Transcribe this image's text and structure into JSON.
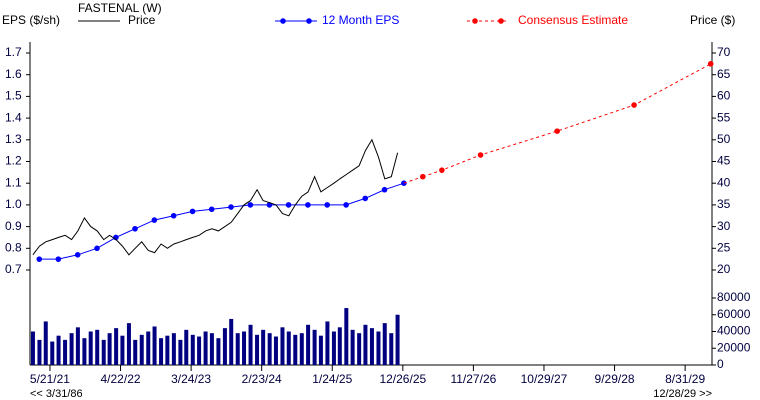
{
  "chart_data": [
    {
      "type": "line",
      "title": "FASTENAL (W)",
      "y_label": "EPS ($/sh)",
      "y2_label": "Price ($)",
      "xlim": [
        "2021-02-15",
        "2030-01-06"
      ],
      "xticks": [
        {
          "value": "2021-05-21",
          "label": "5/21/21"
        },
        {
          "value": "2022-04-22",
          "label": "4/22/22"
        },
        {
          "value": "2023-03-24",
          "label": "3/24/23"
        },
        {
          "value": "2024-02-23",
          "label": "2/23/24"
        },
        {
          "value": "2025-01-24",
          "label": "1/24/25"
        },
        {
          "value": "2025-12-26",
          "label": "12/26/25"
        },
        {
          "value": "2026-11-27",
          "label": "11/27/26"
        },
        {
          "value": "2027-10-29",
          "label": "10/29/27"
        },
        {
          "value": "2028-09-29",
          "label": "9/29/28"
        },
        {
          "value": "2029-08-31",
          "label": "8/31/29"
        }
      ],
      "ylim": [
        0.7,
        1.7
      ],
      "yticks": [
        0.7,
        0.8,
        0.9,
        {
          "value": 1,
          "label": "1.0"
        },
        1.1,
        1.2,
        1.3,
        1.4,
        1.5,
        1.6,
        1.7
      ],
      "y2lim": [
        20,
        70
      ],
      "y2ticks": [
        20,
        25,
        30,
        35,
        40,
        45,
        50,
        55,
        60,
        65,
        70
      ],
      "range_start_link": "<< 3/31/86",
      "range_end_link": "12/28/29 >>",
      "series": [
        {
          "name": "12 Month EPS",
          "color": "#0000ff",
          "style": "solid",
          "x": [
            "2021-03-31",
            "2021-06-30",
            "2021-09-30",
            "2021-12-31",
            "2022-03-31",
            "2022-06-30",
            "2022-09-30",
            "2022-12-31",
            "2023-03-31",
            "2023-06-30",
            "2023-09-30",
            "2023-12-31",
            "2024-03-31",
            "2024-06-30",
            "2024-09-30",
            "2024-12-31",
            "2025-03-31",
            "2025-06-30",
            "2025-09-30",
            "2025-12-31"
          ],
          "values": [
            0.75,
            0.75,
            0.77,
            0.8,
            0.85,
            0.89,
            0.93,
            0.95,
            0.97,
            0.98,
            0.99,
            1.0,
            1.0,
            1.0,
            1.0,
            1.0,
            1.0,
            1.03,
            1.07,
            1.1
          ]
        },
        {
          "name": "Consensus Estimate",
          "color": "#ff0000",
          "style": "dotted",
          "x": [
            "2026-03-31",
            "2026-06-30",
            "2026-12-31",
            "2027-12-31",
            "2028-12-31",
            "2029-12-31"
          ],
          "values": [
            1.13,
            1.16,
            1.23,
            1.34,
            1.46,
            1.65
          ]
        },
        {
          "name": "Price",
          "color": "#000000",
          "style": "plain",
          "axis": "y2",
          "x": [
            "2021-03",
            "2021-04",
            "2021-05",
            "2021-06",
            "2021-07",
            "2021-08",
            "2021-09",
            "2021-10",
            "2021-11",
            "2021-12",
            "2022-01",
            "2022-02",
            "2022-03",
            "2022-04",
            "2022-05",
            "2022-06",
            "2022-07",
            "2022-08",
            "2022-09",
            "2022-10",
            "2022-11",
            "2022-12",
            "2023-01",
            "2023-02",
            "2023-03",
            "2023-04",
            "2023-05",
            "2023-06",
            "2023-07",
            "2023-08",
            "2023-09",
            "2023-10",
            "2023-11",
            "2023-12",
            "2024-01",
            "2024-02",
            "2024-03",
            "2024-04",
            "2024-05",
            "2024-06",
            "2024-07",
            "2024-08",
            "2024-09",
            "2024-10",
            "2024-11",
            "2024-12",
            "2025-01",
            "2025-02",
            "2025-03",
            "2025-04",
            "2025-05",
            "2025-06",
            "2025-07",
            "2025-08",
            "2025-09",
            "2025-10",
            "2025-11",
            "2025-12"
          ],
          "values": [
            23.5,
            25.5,
            26.5,
            27,
            27.5,
            28,
            27,
            29,
            32,
            30,
            29,
            27,
            28,
            27,
            25.5,
            23.5,
            25,
            26.5,
            24.5,
            24,
            26,
            25,
            26,
            26.5,
            27,
            27.5,
            28,
            29,
            29.5,
            29,
            30,
            31,
            33,
            35,
            36,
            38.5,
            36,
            35.5,
            35,
            33,
            32.5,
            35,
            37,
            38,
            41.5,
            38,
            39,
            40,
            41,
            42,
            43,
            44,
            47.5,
            50,
            46,
            41,
            41.5,
            47
          ]
        }
      ]
    },
    {
      "type": "bar",
      "color": "#000080",
      "ylim": [
        0,
        80000
      ],
      "yticks": [
        0,
        20000,
        40000,
        60000,
        80000
      ],
      "x": [
        "2021-03",
        "2021-04",
        "2021-05",
        "2021-06",
        "2021-07",
        "2021-08",
        "2021-09",
        "2021-10",
        "2021-11",
        "2021-12",
        "2022-01",
        "2022-02",
        "2022-03",
        "2022-04",
        "2022-05",
        "2022-06",
        "2022-07",
        "2022-08",
        "2022-09",
        "2022-10",
        "2022-11",
        "2022-12",
        "2023-01",
        "2023-02",
        "2023-03",
        "2023-04",
        "2023-05",
        "2023-06",
        "2023-07",
        "2023-08",
        "2023-09",
        "2023-10",
        "2023-11",
        "2023-12",
        "2024-01",
        "2024-02",
        "2024-03",
        "2024-04",
        "2024-05",
        "2024-06",
        "2024-07",
        "2024-08",
        "2024-09",
        "2024-10",
        "2024-11",
        "2024-12",
        "2025-01",
        "2025-02",
        "2025-03",
        "2025-04",
        "2025-05",
        "2025-06",
        "2025-07",
        "2025-08",
        "2025-09",
        "2025-10",
        "2025-11",
        "2025-12"
      ],
      "values": [
        40000,
        30000,
        52000,
        28000,
        35000,
        30000,
        38000,
        45000,
        32000,
        40000,
        42000,
        30000,
        38000,
        44000,
        35000,
        50000,
        30000,
        36000,
        40000,
        46000,
        32000,
        35000,
        38000,
        30000,
        42000,
        36000,
        34000,
        40000,
        38000,
        32000,
        44000,
        55000,
        38000,
        40000,
        48000,
        36000,
        42000,
        38000,
        34000,
        45000,
        40000,
        36000,
        38000,
        48000,
        42000,
        35000,
        52000,
        40000,
        45000,
        68000,
        42000,
        38000,
        48000,
        44000,
        40000,
        50000,
        38000,
        60000
      ]
    }
  ]
}
